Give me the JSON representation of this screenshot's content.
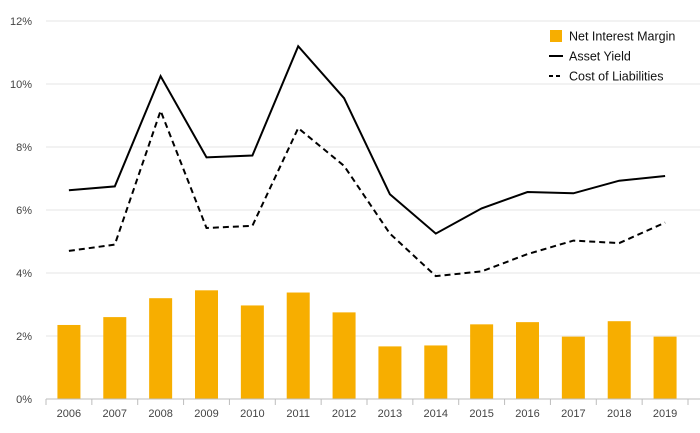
{
  "chart_data": {
    "type": "bar",
    "categories": [
      "2006",
      "2007",
      "2008",
      "2009",
      "2010",
      "2011",
      "2012",
      "2013",
      "2014",
      "2015",
      "2016",
      "2017",
      "2018",
      "2019"
    ],
    "series": [
      {
        "name": "Net Interest Margin",
        "type": "bar",
        "color": "#F7AE00",
        "values": [
          2.35,
          2.6,
          3.2,
          3.45,
          2.97,
          3.38,
          2.75,
          1.67,
          1.7,
          2.37,
          2.44,
          1.98,
          2.47,
          1.98
        ]
      },
      {
        "name": "Asset Yield",
        "type": "line",
        "style": "solid",
        "color": "#000000",
        "values": [
          6.63,
          6.75,
          10.25,
          7.67,
          7.73,
          11.2,
          9.55,
          6.5,
          5.25,
          6.05,
          6.57,
          6.53,
          6.93,
          7.08
        ]
      },
      {
        "name": "Cost of Liabilities",
        "type": "line",
        "style": "dashed",
        "color": "#000000",
        "values": [
          4.7,
          4.9,
          9.15,
          5.43,
          5.5,
          8.6,
          7.4,
          5.25,
          3.9,
          4.05,
          4.6,
          5.03,
          4.95,
          5.6
        ]
      }
    ],
    "ylim": [
      0,
      12
    ],
    "yticks": [
      "0%",
      "2%",
      "4%",
      "6%",
      "8%",
      "10%",
      "12%"
    ],
    "grid": true,
    "legend": {
      "placement": "top-right"
    }
  }
}
